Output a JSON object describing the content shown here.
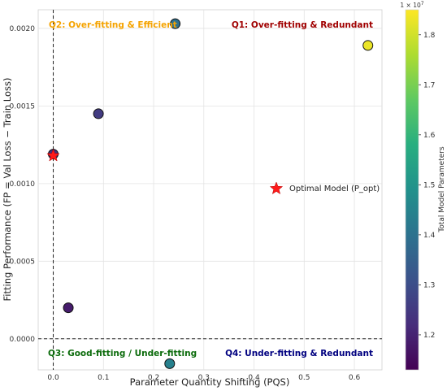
{
  "chart_data": {
    "type": "scatter",
    "xlabel": "Parameter Quantity Shifting (PQS)",
    "ylabel": "Fitting Performance (FP = Val Loss − Train Loss)",
    "xlim": [
      -0.03,
      0.655
    ],
    "ylim": [
      -0.0002,
      0.00212
    ],
    "xticks": [
      0.0,
      0.1,
      0.2,
      0.3,
      0.4,
      0.5,
      0.6
    ],
    "xtick_labels": [
      "0.0",
      "0.1",
      "0.2",
      "0.3",
      "0.4",
      "0.5",
      "0.6"
    ],
    "yticks": [
      0.0,
      0.0005,
      0.001,
      0.0015,
      0.002
    ],
    "ytick_labels": [
      "0.0000",
      "0.0005",
      "0.0010",
      "0.0015",
      "0.0020"
    ],
    "grid": true,
    "reference_lines": {
      "x": 0,
      "y": 0
    },
    "points": [
      {
        "x": 0.0,
        "y": 0.00119,
        "params": 12300000
      },
      {
        "x": 0.03,
        "y": 0.0002,
        "params": 11850000
      },
      {
        "x": 0.09,
        "y": 0.00145,
        "params": 12550000
      },
      {
        "x": 0.232,
        "y": -0.00016,
        "params": 14400000
      },
      {
        "x": 0.243,
        "y": 0.00203,
        "params": 13950000
      },
      {
        "x": 0.627,
        "y": 0.00189,
        "params": 18300000
      }
    ],
    "optimal": {
      "x": 0.0,
      "y": 0.00118,
      "legend_label": "Optimal Model (P_opt)",
      "color": "#ff1a1a"
    },
    "quadrants": [
      {
        "label": "Q1: Over-fitting & Redundant",
        "color": "#a00000"
      },
      {
        "label": "Q2: Over-fitting & Efficient",
        "color": "#f5a300"
      },
      {
        "label": "Q3: Good-fitting / Under-fitting",
        "color": "#0b6b0b"
      },
      {
        "label": "Q4: Under-fitting & Redundant",
        "color": "#000080"
      }
    ],
    "colorbar": {
      "label": "Total Model Parameters",
      "scale_note": "1e7",
      "range": [
        11.3,
        18.5
      ],
      "ticks": [
        1.2,
        1.3,
        1.4,
        1.5,
        1.6,
        1.7,
        1.8
      ],
      "tick_labels": [
        "1.2",
        "1.3",
        "1.4",
        "1.5",
        "1.6",
        "1.7",
        "1.8"
      ],
      "colormap": "viridis"
    }
  }
}
